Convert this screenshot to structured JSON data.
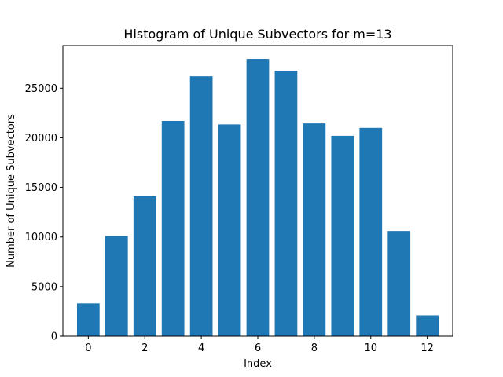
{
  "chart_data": {
    "type": "bar",
    "title": "Histogram of Unique Subvectors for m=13",
    "xlabel": "Index",
    "ylabel": "Number of Unique Subvectors",
    "categories": [
      0,
      1,
      2,
      3,
      4,
      5,
      6,
      7,
      8,
      9,
      10,
      11,
      12
    ],
    "values": [
      3300,
      10100,
      14100,
      21700,
      26200,
      21350,
      27950,
      26750,
      21450,
      20200,
      21000,
      10600,
      2100
    ],
    "xlim": [
      -0.9,
      12.9
    ],
    "ylim": [
      0,
      29300
    ],
    "xticks": [
      "0",
      "2",
      "4",
      "6",
      "8",
      "10",
      "12"
    ],
    "yticks": [
      "0",
      "5000",
      "10000",
      "15000",
      "20000",
      "25000"
    ],
    "bar_color": "#1f77b4",
    "grid": false,
    "legend": "none"
  }
}
